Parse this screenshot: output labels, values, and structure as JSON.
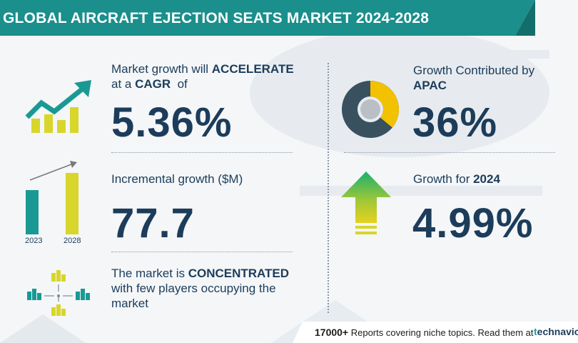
{
  "header": {
    "title": "GLOBAL AIRCRAFT EJECTION SEATS MARKET 2024-2028",
    "accent_color": "#1a8f8c"
  },
  "cagr": {
    "line1_prefix": "Market growth will ",
    "line1_bold": "ACCELERATE",
    "line2_prefix": "at a ",
    "line2_bold": "CAGR",
    "line2_suffix": "  of",
    "value": "5.36%"
  },
  "incremental": {
    "label": "Incremental growth ($M)",
    "value": "77.7",
    "year_start": "2023",
    "year_end": "2028"
  },
  "concentration": {
    "line1_prefix": "The market is ",
    "line1_bold": "CONCENTRATED",
    "line2": "with few players occupying the",
    "line3": "market"
  },
  "apac": {
    "line1": "Growth Contributed by",
    "line2_bold": "APAC",
    "value": "36%",
    "share": 0.36
  },
  "growth_year": {
    "label_prefix": "Growth for ",
    "label_bold": "2024",
    "value": "4.99%"
  },
  "footer": {
    "count": "17000+",
    "text": " Reports covering niche topics. Read them at",
    "logo_prefix": "t",
    "logo_rest": "echnavio"
  },
  "colors": {
    "teal": "#1a9994",
    "yellow": "#d8d62a",
    "navy": "#1c3c5a",
    "gold": "#f2c100",
    "dark_slate": "#39505f",
    "green": "#2fa84f"
  }
}
